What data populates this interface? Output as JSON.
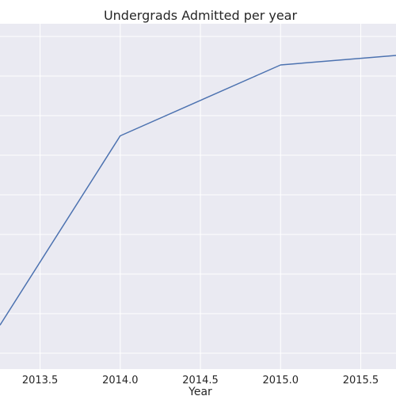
{
  "chart_data": {
    "type": "line",
    "title": "Undergrads Admitted per year",
    "xlabel": "Year",
    "ylabel": "",
    "x": [
      2013.25,
      2014.0,
      2015.0,
      2015.72
    ],
    "series": [
      {
        "values": [
          0.71,
          5.49,
          7.28,
          7.52
        ]
      }
    ],
    "xlim": [
      2013.25,
      2015.72
    ],
    "ylim": [
      0,
      8
    ],
    "x_ticks": [
      2013.5,
      2014.0,
      2014.5,
      2015.0,
      2015.5
    ],
    "x_tick_labels": [
      "2013.5",
      "2014.0",
      "2014.5",
      "2015.0",
      "2015.5"
    ],
    "y_gridlines": [
      0,
      1,
      2,
      3,
      4,
      5,
      6,
      7,
      8
    ],
    "grid": true,
    "line_color": "#4c72b0",
    "plot_background": "#eaeaf2",
    "grid_color": "#ffffff"
  }
}
